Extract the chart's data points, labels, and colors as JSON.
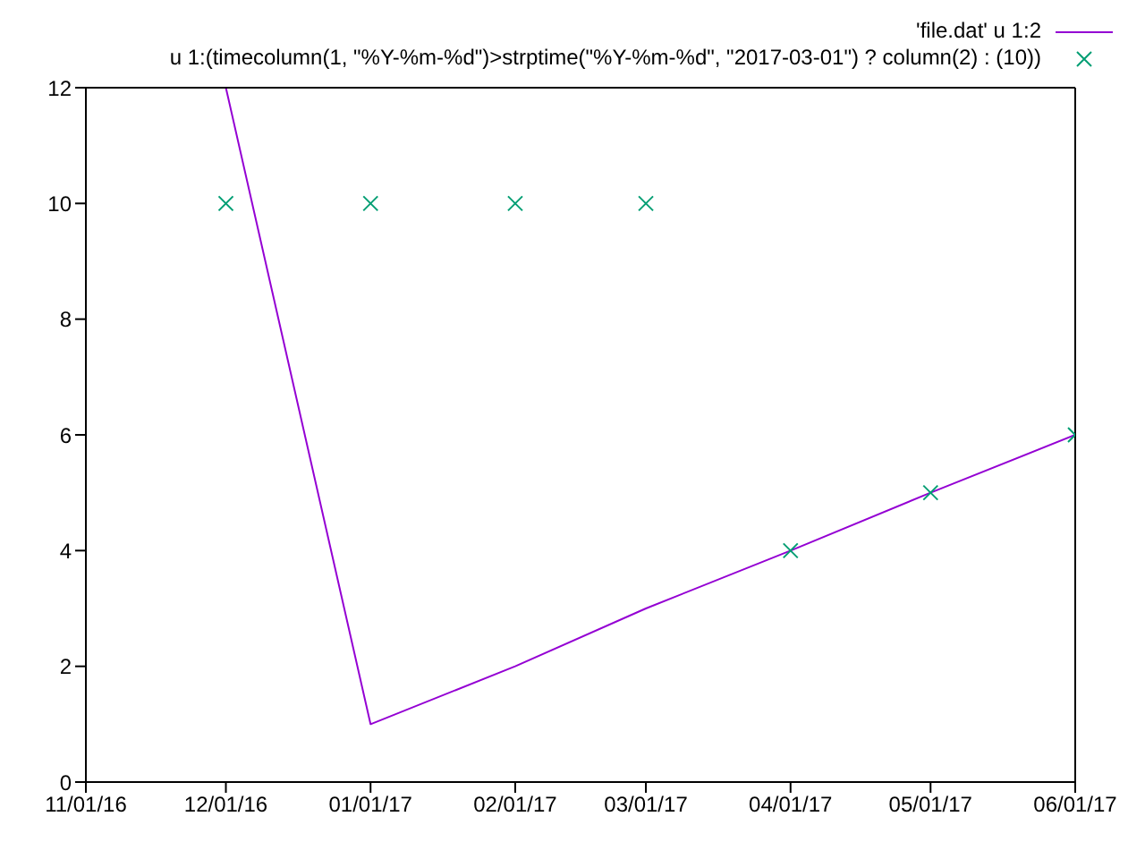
{
  "chart_data": {
    "type": "line",
    "x": [
      "2016-12-01",
      "2017-01-01",
      "2017-02-01",
      "2017-03-01",
      "2017-04-01",
      "2017-05-01",
      "2017-06-01"
    ],
    "series": [
      {
        "name": "'file.dat' u 1:2",
        "color": "#9400d3",
        "marker": "none",
        "values": [
          12,
          1,
          2,
          3,
          4,
          5,
          6
        ]
      },
      {
        "name": "u 1:(timecolumn(1, \"%Y-%m-%d\")>strptime(\"%Y-%m-%d\", \"2017-03-01\") ? column(2) : (10))",
        "type": "scatter",
        "color": "#009e73",
        "marker": "cross",
        "values": [
          10,
          10,
          10,
          10,
          4,
          5,
          6
        ]
      }
    ],
    "xlim": [
      "2016-11-01",
      "2017-06-01"
    ],
    "xticks": [
      {
        "value": "2016-11-01",
        "label": "11/01/16"
      },
      {
        "value": "2016-12-01",
        "label": "12/01/16"
      },
      {
        "value": "2017-01-01",
        "label": "01/01/17"
      },
      {
        "value": "2017-02-01",
        "label": "02/01/17"
      },
      {
        "value": "2017-03-01",
        "label": "03/01/17"
      },
      {
        "value": "2017-04-01",
        "label": "04/01/17"
      },
      {
        "value": "2017-05-01",
        "label": "05/01/17"
      },
      {
        "value": "2017-06-01",
        "label": "06/01/17"
      }
    ],
    "ylim": [
      0,
      12
    ],
    "yticks": [
      0,
      2,
      4,
      6,
      8,
      10,
      12
    ],
    "grid": false,
    "legend": "top right"
  }
}
